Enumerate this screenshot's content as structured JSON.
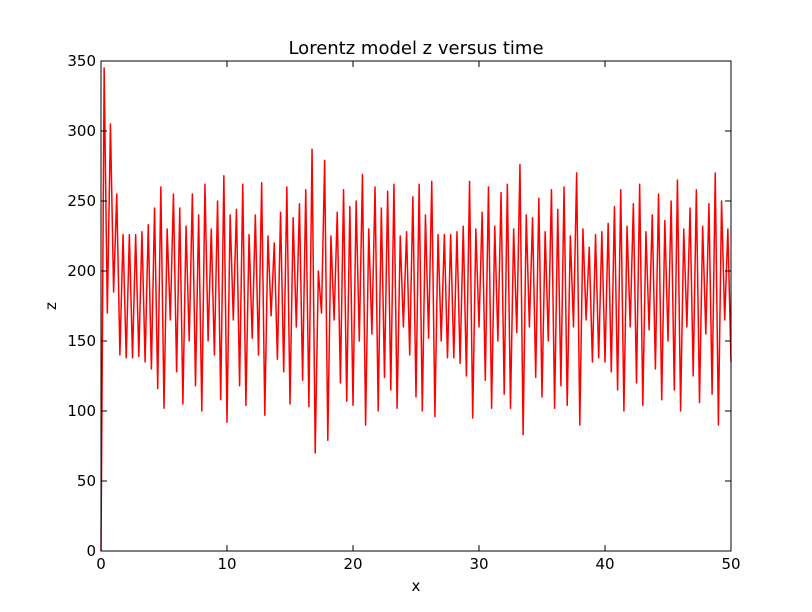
{
  "chart_data": {
    "type": "line",
    "title": "Lorentz model z versus time",
    "xlabel": "x",
    "ylabel": "z",
    "x": [
      0,
      0.25,
      0.5,
      0.75,
      1,
      1.25,
      1.5,
      1.75,
      2,
      2.25,
      2.5,
      2.75,
      3,
      3.25,
      3.5,
      3.75,
      4,
      4.25,
      4.5,
      4.75,
      5,
      5.25,
      5.5,
      5.75,
      6,
      6.25,
      6.5,
      6.75,
      7,
      7.25,
      7.5,
      7.75,
      8,
      8.25,
      8.5,
      8.75,
      9,
      9.25,
      9.5,
      9.75,
      10,
      10.25,
      10.5,
      10.75,
      11,
      11.25,
      11.5,
      11.75,
      12,
      12.25,
      12.5,
      12.75,
      13,
      13.25,
      13.5,
      13.75,
      14,
      14.25,
      14.5,
      14.75,
      15,
      15.25,
      15.5,
      15.75,
      16,
      16.25,
      16.5,
      16.75,
      17,
      17.25,
      17.5,
      17.75,
      18,
      18.25,
      18.5,
      18.75,
      19,
      19.25,
      19.5,
      19.75,
      20,
      20.25,
      20.5,
      20.75,
      21,
      21.25,
      21.5,
      21.75,
      22,
      22.25,
      22.5,
      22.75,
      23,
      23.25,
      23.5,
      23.75,
      24,
      24.25,
      24.5,
      24.75,
      25,
      25.25,
      25.5,
      25.75,
      26,
      26.25,
      26.5,
      26.75,
      27,
      27.25,
      27.5,
      27.75,
      28,
      28.25,
      28.5,
      28.75,
      29,
      29.25,
      29.5,
      29.75,
      30,
      30.25,
      30.5,
      30.75,
      31,
      31.25,
      31.5,
      31.75,
      32,
      32.25,
      32.5,
      32.75,
      33,
      33.25,
      33.5,
      33.75,
      34,
      34.25,
      34.5,
      34.75,
      35,
      35.25,
      35.5,
      35.75,
      36,
      36.25,
      36.5,
      36.75,
      37,
      37.25,
      37.5,
      37.75,
      38,
      38.25,
      38.5,
      38.75,
      39,
      39.25,
      39.5,
      39.75,
      40,
      40.25,
      40.5,
      40.75,
      41,
      41.25,
      41.5,
      41.75,
      42,
      42.25,
      42.5,
      42.75,
      43,
      43.25,
      43.5,
      43.75,
      44,
      44.25,
      44.5,
      44.75,
      45,
      45.25,
      45.5,
      45.75,
      46,
      46.25,
      46.5,
      46.75,
      47,
      47.25,
      47.5,
      47.75,
      48,
      48.25,
      48.5,
      48.75,
      49,
      49.25,
      49.5,
      49.75,
      50
    ],
    "series": [
      {
        "name": "z",
        "color": "#ff0000",
        "values": [
          0,
          345,
          170,
          305,
          185,
          255,
          140,
          226,
          138,
          226,
          138,
          226,
          139,
          228,
          135,
          233,
          130,
          245,
          116,
          260,
          102,
          230,
          165,
          255,
          128,
          245,
          105,
          232,
          150,
          255,
          118,
          240,
          100,
          262,
          150,
          230,
          140,
          250,
          108,
          268,
          92,
          240,
          165,
          244,
          118,
          262,
          104,
          226,
          152,
          240,
          140,
          263,
          97,
          225,
          168,
          220,
          137,
          242,
          128,
          260,
          105,
          238,
          160,
          248,
          122,
          258,
          103,
          287,
          70,
          200,
          170,
          279,
          79,
          225,
          165,
          242,
          120,
          258,
          107,
          246,
          104,
          250,
          150,
          269,
          90,
          230,
          155,
          260,
          100,
          245,
          124,
          257,
          115,
          262,
          102,
          225,
          160,
          228,
          140,
          253,
          110,
          262,
          100,
          240,
          152,
          264,
          96,
          226,
          150,
          226,
          138,
          226,
          138,
          228,
          134,
          232,
          125,
          264,
          95,
          230,
          160,
          242,
          122,
          260,
          102,
          232,
          150,
          256,
          112,
          262,
          102,
          230,
          156,
          276,
          83,
          240,
          160,
          238,
          124,
          252,
          110,
          228,
          150,
          258,
          102,
          244,
          118,
          260,
          104,
          225,
          160,
          270,
          90,
          230,
          165,
          217,
          135,
          226,
          138,
          228,
          135,
          234,
          128,
          246,
          115,
          258,
          100,
          232,
          160,
          248,
          120,
          262,
          104,
          228,
          158,
          240,
          130,
          255,
          108,
          236,
          150,
          250,
          115,
          265,
          100,
          230,
          160,
          245,
          125,
          258,
          106,
          232,
          155,
          248,
          112,
          270,
          90,
          250,
          165,
          230,
          135
        ]
      }
    ],
    "xlim": [
      0,
      50
    ],
    "ylim": [
      0,
      350
    ],
    "xticks": [
      0,
      10,
      20,
      30,
      40,
      50
    ],
    "yticks": [
      0,
      50,
      100,
      150,
      200,
      250,
      300,
      350
    ]
  }
}
